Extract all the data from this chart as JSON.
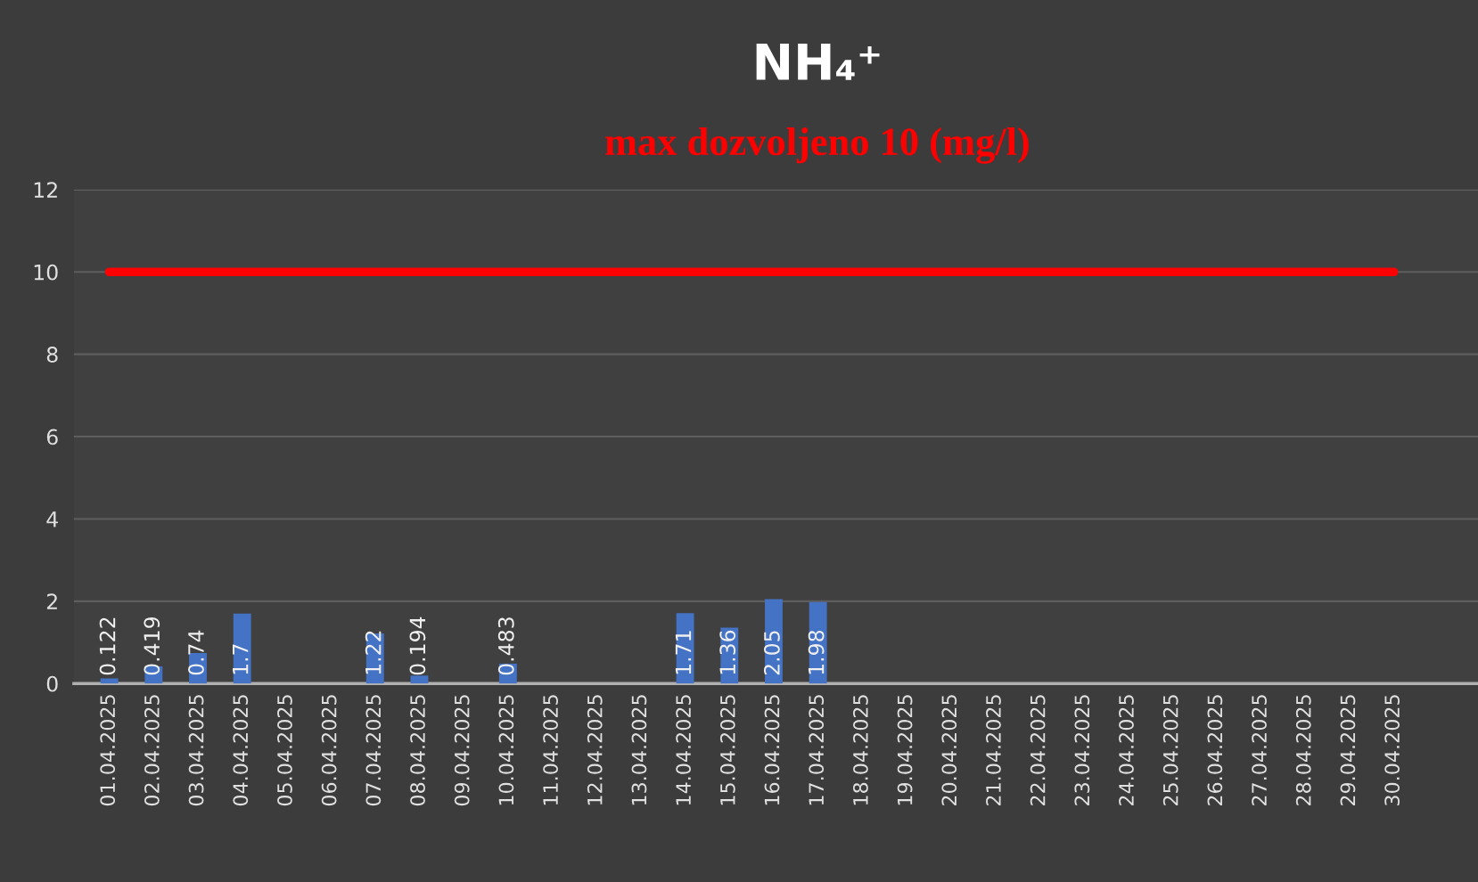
{
  "chart_data": {
    "type": "bar",
    "title": "NH₄⁺",
    "subtitle": "max dozvoljeno 10 (mg/l)",
    "categories": [
      "01.04.2025",
      "02.04.2025",
      "03.04.2025",
      "04.04.2025",
      "05.04.2025",
      "06.04.2025",
      "07.04.2025",
      "08.04.2025",
      "09.04.2025",
      "10.04.2025",
      "11.04.2025",
      "12.04.2025",
      "13.04.2025",
      "14.04.2025",
      "15.04.2025",
      "16.04.2025",
      "17.04.2025",
      "18.04.2025",
      "19.04.2025",
      "20.04.2025",
      "21.04.2025",
      "22.04.2025",
      "23.04.2025",
      "24.04.2025",
      "25.04.2025",
      "26.04.2025",
      "27.04.2025",
      "28.04.2025",
      "29.04.2025",
      "30.04.2025"
    ],
    "values": [
      0.122,
      0.419,
      0.74,
      1.7,
      null,
      null,
      1.22,
      0.194,
      null,
      0.483,
      null,
      null,
      null,
      1.71,
      1.36,
      2.05,
      1.98,
      null,
      null,
      null,
      null,
      null,
      null,
      null,
      null,
      null,
      null,
      null,
      null,
      null
    ],
    "color": "#4472c4",
    "ylim": [
      0,
      12
    ],
    "yticks": [
      0,
      2,
      4,
      6,
      8,
      10,
      12
    ],
    "ref_lines": [
      {
        "axis": "y",
        "value": 10,
        "color": "#ff0000",
        "line_style": "solid"
      }
    ],
    "data_labels": true,
    "grid": "y",
    "legend": false
  }
}
